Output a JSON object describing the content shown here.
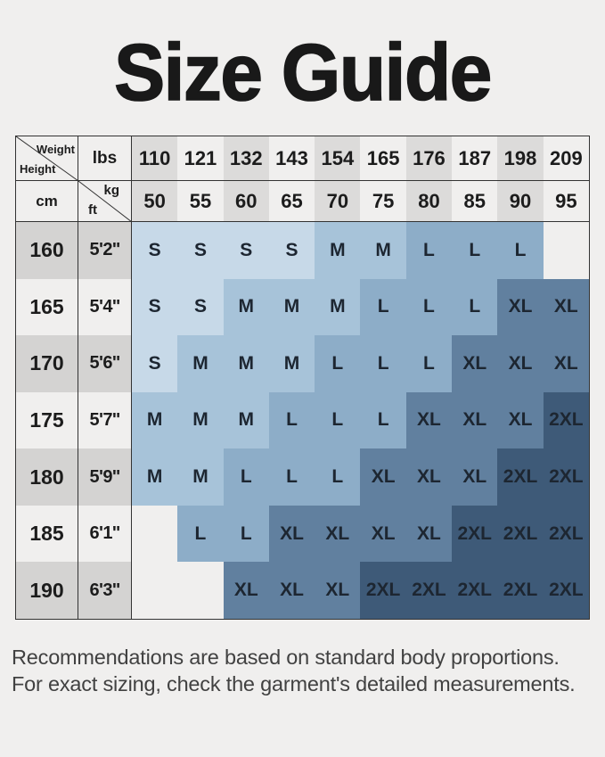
{
  "title": "Size Guide",
  "chart_data": {
    "type": "table",
    "title": "Size Guide",
    "corner": {
      "weight": "Weight",
      "height": "Height",
      "lbs": "lbs",
      "cm": "cm",
      "kg": "kg",
      "ft": "ft"
    },
    "weight_lbs": [
      "110",
      "121",
      "132",
      "143",
      "154",
      "165",
      "176",
      "187",
      "198",
      "209"
    ],
    "weight_kg": [
      "50",
      "55",
      "60",
      "65",
      "70",
      "75",
      "80",
      "85",
      "90",
      "95"
    ],
    "rows": [
      {
        "cm": "160",
        "ft": "5'2''",
        "sizes": [
          "S",
          "S",
          "S",
          "S",
          "M",
          "M",
          "L",
          "L",
          "L",
          ""
        ]
      },
      {
        "cm": "165",
        "ft": "5'4''",
        "sizes": [
          "S",
          "S",
          "M",
          "M",
          "M",
          "L",
          "L",
          "L",
          "XL",
          "XL"
        ]
      },
      {
        "cm": "170",
        "ft": "5'6''",
        "sizes": [
          "S",
          "M",
          "M",
          "M",
          "L",
          "L",
          "L",
          "XL",
          "XL",
          "XL"
        ]
      },
      {
        "cm": "175",
        "ft": "5'7''",
        "sizes": [
          "M",
          "M",
          "M",
          "L",
          "L",
          "L",
          "XL",
          "XL",
          "XL",
          "2XL"
        ]
      },
      {
        "cm": "180",
        "ft": "5'9''",
        "sizes": [
          "M",
          "M",
          "L",
          "L",
          "L",
          "XL",
          "XL",
          "XL",
          "2XL",
          "2XL"
        ]
      },
      {
        "cm": "185",
        "ft": "6'1''",
        "sizes": [
          "",
          "L",
          "L",
          "XL",
          "XL",
          "XL",
          "XL",
          "2XL",
          "2XL",
          "2XL"
        ]
      },
      {
        "cm": "190",
        "ft": "6'3''",
        "sizes": [
          "",
          "",
          "XL",
          "XL",
          "XL",
          "2XL",
          "2XL",
          "2XL",
          "2XL",
          "2XL"
        ]
      }
    ],
    "size_colors": {
      "S": "#c7d9e8",
      "M": "#a7c3d9",
      "L": "#8dadc8",
      "XL": "#61809f",
      "2XL": "#3e5a78",
      "": "#f0efee"
    },
    "header_col_gray": "#dcdbda",
    "header_col_light": "#f0efee",
    "body_row_gray": "#d4d3d2",
    "body_row_light": "#f0efee"
  },
  "footer": {
    "line1": "Recommendations are based on standard body proportions.",
    "line2": "For exact sizing, check the garment's detailed measurements."
  }
}
